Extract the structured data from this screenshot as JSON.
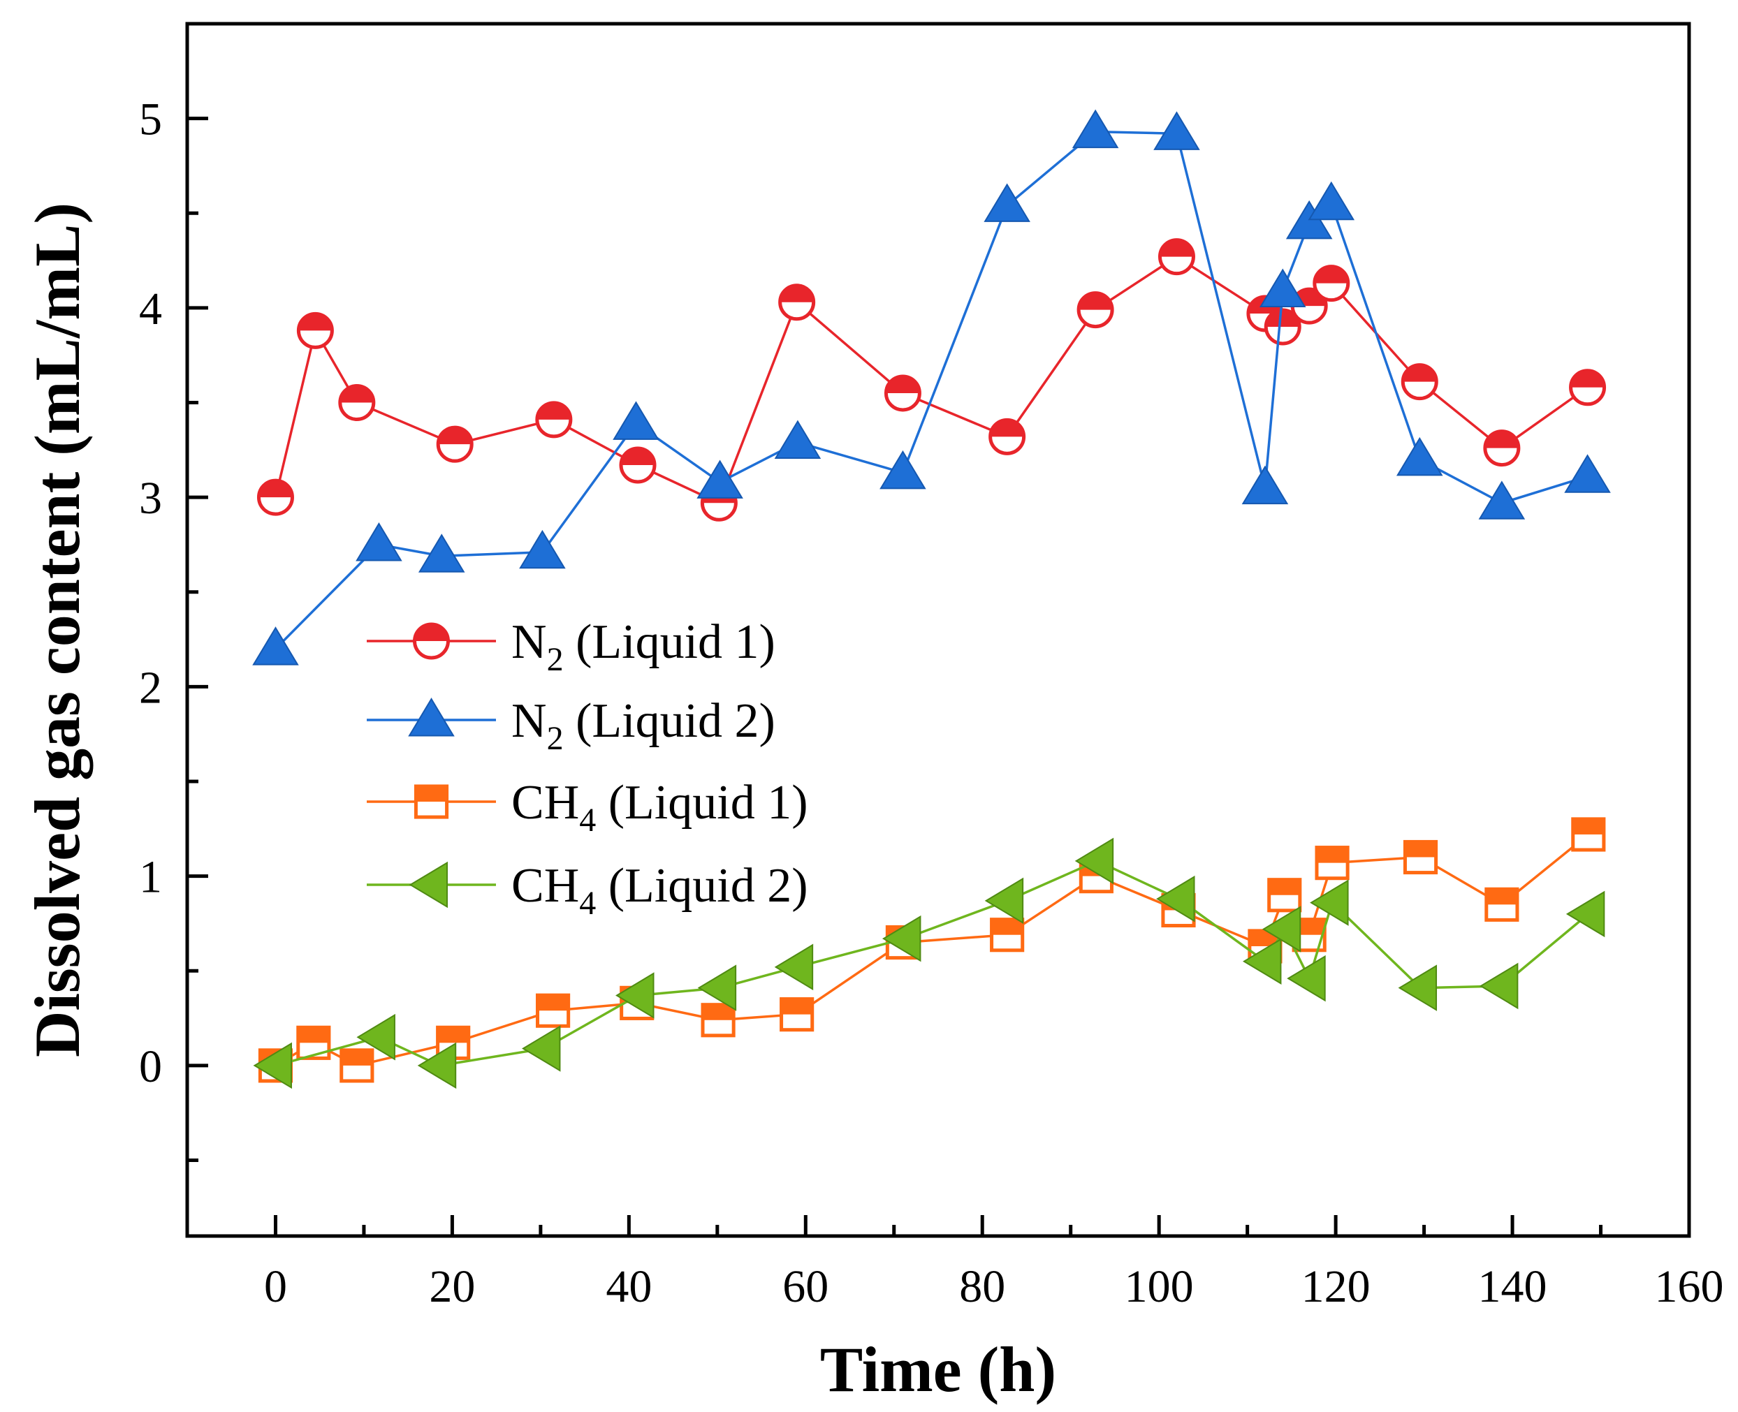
{
  "chart_data": {
    "type": "line",
    "title": "",
    "xlabel": "Time (h)",
    "ylabel": "Dissolved gas content (mL/mL)",
    "xlim": [
      -10,
      160
    ],
    "ylim": [
      -0.9,
      5.5
    ],
    "xticks": [
      0,
      20,
      40,
      60,
      80,
      100,
      120,
      140,
      160
    ],
    "yticks": [
      0,
      1,
      2,
      3,
      4,
      5
    ],
    "xtick_labels": [
      "0",
      "20",
      "40",
      "60",
      "80",
      "100",
      "120",
      "140",
      "160"
    ],
    "ytick_labels": [
      "0",
      "1",
      "2",
      "3",
      "4",
      "5"
    ],
    "legend_position": "center-left",
    "series": [
      {
        "name": "N2 (Liquid 1)",
        "legend": {
          "base": "N",
          "sub": "2",
          "rest": " (Liquid 1)"
        },
        "marker": "half-circle",
        "color": "#e8252b",
        "x": [
          0,
          4.5,
          9.2,
          20.3,
          31.5,
          41,
          50.2,
          59,
          71,
          82.8,
          92.8,
          102,
          112,
          114,
          117,
          119.5,
          129.5,
          138.8,
          148.5
        ],
        "y": [
          3.0,
          3.88,
          3.5,
          3.28,
          3.41,
          3.17,
          2.97,
          4.03,
          3.55,
          3.32,
          3.99,
          4.27,
          3.97,
          3.9,
          4.01,
          4.13,
          3.61,
          3.26,
          3.58
        ]
      },
      {
        "name": "N2 (Liquid 2)",
        "legend": {
          "base": "N",
          "sub": "2",
          "rest": " (Liquid 2)"
        },
        "marker": "triangle-up",
        "color": "#1e6fd6",
        "x": [
          0,
          11.7,
          18.8,
          30.2,
          40.8,
          50.3,
          59.1,
          71,
          82.8,
          92.8,
          102,
          112,
          114,
          117,
          119.5,
          129.5,
          138.8,
          148.5
        ],
        "y": [
          2.2,
          2.75,
          2.69,
          2.71,
          3.39,
          3.08,
          3.29,
          3.13,
          4.54,
          4.93,
          4.92,
          3.05,
          4.09,
          4.45,
          4.55,
          3.2,
          2.97,
          3.11
        ]
      },
      {
        "name": "CH4 (Liquid 1)",
        "legend": {
          "base": "CH",
          "sub": "4",
          "rest": " (Liquid 1)"
        },
        "marker": "half-square",
        "color": "#ff6a13",
        "x": [
          0,
          4.3,
          9.2,
          20.1,
          31.4,
          40.9,
          50.1,
          59,
          71,
          82.8,
          92.9,
          102.2,
          112,
          114.2,
          117,
          119.6,
          129.6,
          138.8,
          148.6
        ],
        "y": [
          0.0,
          0.12,
          0.0,
          0.12,
          0.29,
          0.33,
          0.24,
          0.27,
          0.65,
          0.69,
          1.0,
          0.82,
          0.63,
          0.9,
          0.69,
          1.07,
          1.1,
          0.85,
          1.22
        ]
      },
      {
        "name": "CH4 (Liquid 2)",
        "legend": {
          "base": "CH",
          "sub": "4",
          "rest": " (Liquid 2)"
        },
        "marker": "triangle-left",
        "color": "#6fb61e",
        "x": [
          0,
          11.7,
          18.6,
          30.4,
          41,
          50.3,
          59,
          71.2,
          82.8,
          93,
          102.2,
          112,
          114.2,
          117,
          119.6,
          129.6,
          138.8,
          148.6
        ],
        "y": [
          0.0,
          0.15,
          0.0,
          0.09,
          0.37,
          0.41,
          0.52,
          0.67,
          0.87,
          1.08,
          0.88,
          0.55,
          0.72,
          0.46,
          0.86,
          0.41,
          0.42,
          0.8
        ]
      }
    ]
  }
}
